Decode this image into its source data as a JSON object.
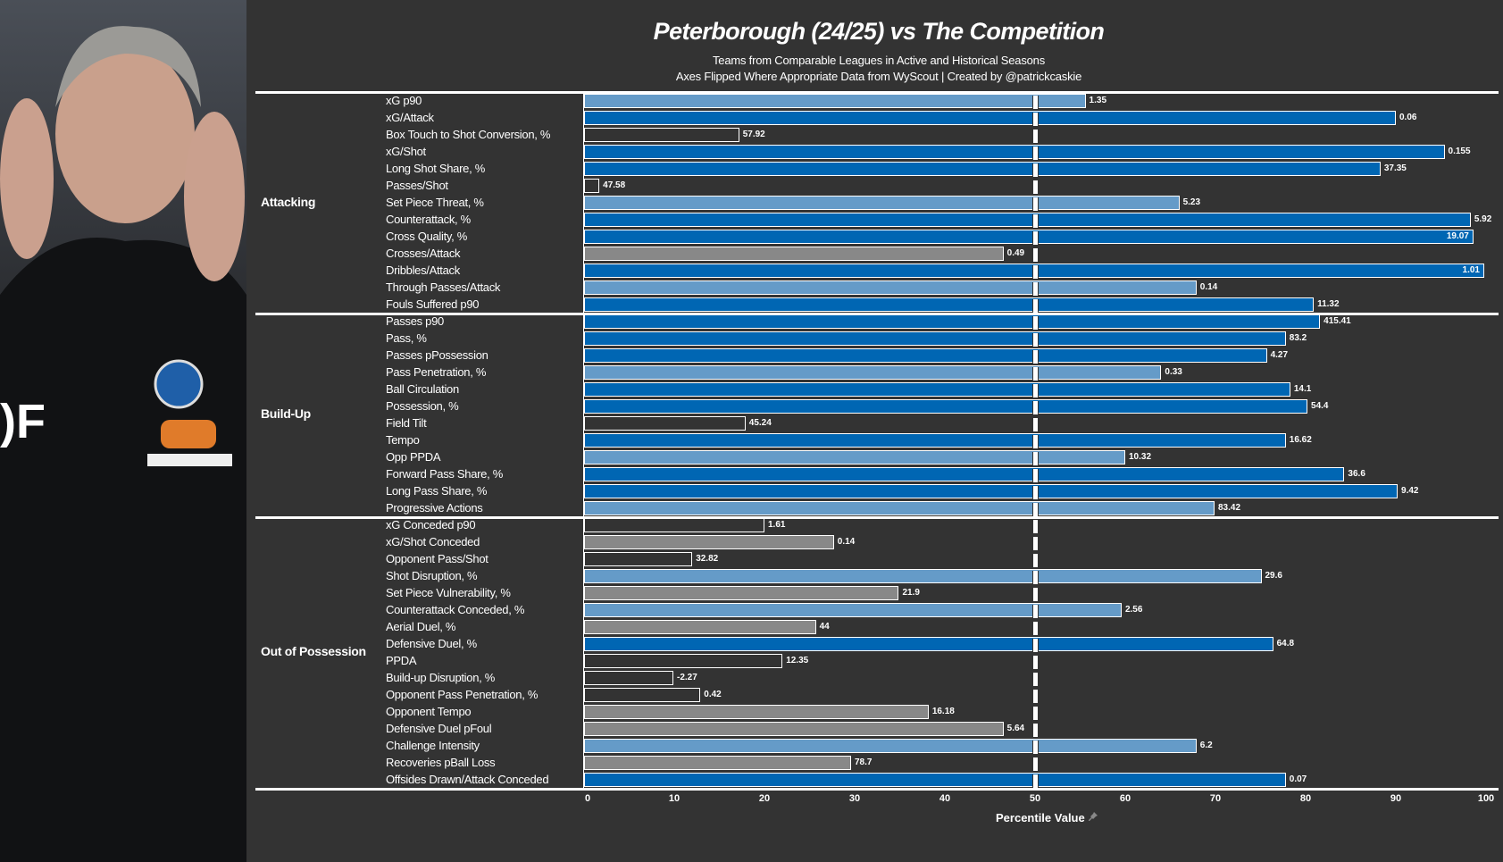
{
  "title": "Peterborough (24/25) vs The Competition",
  "subtitle_1": "Teams from Comparable Leagues in Active and Historical Seasons",
  "subtitle_2": "Axes Flipped Where Appropriate  Data from WyScout | Created by @patrickcaskie",
  "chart_data": {
    "type": "bar",
    "orientation": "horizontal",
    "xlabel": "Percentile Value",
    "xlim": [
      0,
      100
    ],
    "xticks": [
      0,
      10,
      20,
      30,
      40,
      50,
      60,
      70,
      80,
      90,
      100
    ],
    "reference_line": 50,
    "colors": {
      "low": "#333333",
      "below_avg": "#888888",
      "above_avg": "#659bc8",
      "high": "#0066b3"
    },
    "groups": [
      {
        "name": "Attacking",
        "rows": [
          {
            "metric": "xG p90",
            "percentile": 55.6,
            "value": "1.35"
          },
          {
            "metric": "xG/Attack",
            "percentile": 90,
            "value": "0.06"
          },
          {
            "metric": "Box Touch to Shot Conversion, %",
            "percentile": 17.2,
            "value": "57.92"
          },
          {
            "metric": "xG/Shot",
            "percentile": 95.4,
            "value": "0.155"
          },
          {
            "metric": "Long Shot Share, %",
            "percentile": 88.3,
            "value": "37.35"
          },
          {
            "metric": "Passes/Shot",
            "percentile": 1.7,
            "value": "47.58"
          },
          {
            "metric": "Set Piece Threat, %",
            "percentile": 66,
            "value": "5.23"
          },
          {
            "metric": "Counterattack, %",
            "percentile": 98.3,
            "value": "5.92"
          },
          {
            "metric": "Cross Quality, %",
            "percentile": 98.6,
            "value": "19.07"
          },
          {
            "metric": "Crosses/Attack",
            "percentile": 46.5,
            "value": "0.49"
          },
          {
            "metric": "Dribbles/Attack",
            "percentile": 99.8,
            "value": "1.01"
          },
          {
            "metric": "Through Passes/Attack",
            "percentile": 67.9,
            "value": "0.14"
          },
          {
            "metric": "Fouls Suffered p90",
            "percentile": 80.9,
            "value": "11.32"
          }
        ]
      },
      {
        "name": "Build-Up",
        "rows": [
          {
            "metric": "Passes p90",
            "percentile": 81.6,
            "value": "415.41"
          },
          {
            "metric": "Pass, %",
            "percentile": 77.8,
            "value": "83.2"
          },
          {
            "metric": "Passes pPossession",
            "percentile": 75.7,
            "value": "4.27"
          },
          {
            "metric": "Pass Penetration, %",
            "percentile": 64,
            "value": "0.33"
          },
          {
            "metric": "Ball Circulation",
            "percentile": 78.3,
            "value": "14.1"
          },
          {
            "metric": "Possession, %",
            "percentile": 80.2,
            "value": "54.4"
          },
          {
            "metric": "Field Tilt",
            "percentile": 17.9,
            "value": "45.24"
          },
          {
            "metric": "Tempo",
            "percentile": 77.8,
            "value": "16.62"
          },
          {
            "metric": "Opp PPDA",
            "percentile": 60,
            "value": "10.32"
          },
          {
            "metric": "Forward Pass Share, %",
            "percentile": 84.3,
            "value": "36.6"
          },
          {
            "metric": "Long Pass Share, %",
            "percentile": 90.2,
            "value": "9.42"
          },
          {
            "metric": "Progressive Actions",
            "percentile": 69.9,
            "value": "83.42"
          }
        ]
      },
      {
        "name": "Out of Possession",
        "rows": [
          {
            "metric": "xG Conceded p90",
            "percentile": 20,
            "value": "1.61"
          },
          {
            "metric": "xG/Shot Conceded",
            "percentile": 27.7,
            "value": "0.14"
          },
          {
            "metric": "Opponent Pass/Shot",
            "percentile": 12,
            "value": "32.82"
          },
          {
            "metric": "Shot Disruption, %",
            "percentile": 75.1,
            "value": "29.6"
          },
          {
            "metric": "Set Piece Vulnerability, %",
            "percentile": 34.9,
            "value": "21.9"
          },
          {
            "metric": "Counterattack Conceded, %",
            "percentile": 59.6,
            "value": "2.56"
          },
          {
            "metric": "Aerial Duel, %",
            "percentile": 25.7,
            "value": "44"
          },
          {
            "metric": "Defensive Duel, %",
            "percentile": 76.4,
            "value": "64.8"
          },
          {
            "metric": "PPDA",
            "percentile": 22,
            "value": "12.35"
          },
          {
            "metric": "Build-up Disruption, %",
            "percentile": 9.9,
            "value": "-2.27"
          },
          {
            "metric": "Opponent Pass Penetration, %",
            "percentile": 12.9,
            "value": "0.42"
          },
          {
            "metric": "Opponent Tempo",
            "percentile": 38.2,
            "value": "16.18"
          },
          {
            "metric": "Defensive Duel pFoul",
            "percentile": 46.5,
            "value": "5.64"
          },
          {
            "metric": "Challenge Intensity",
            "percentile": 67.9,
            "value": "6.2"
          },
          {
            "metric": "Recoveries pBall Loss",
            "percentile": 29.6,
            "value": "78.7"
          },
          {
            "metric": "Offsides Drawn/Attack Conceded",
            "percentile": 77.8,
            "value": "0.07"
          }
        ]
      }
    ]
  }
}
